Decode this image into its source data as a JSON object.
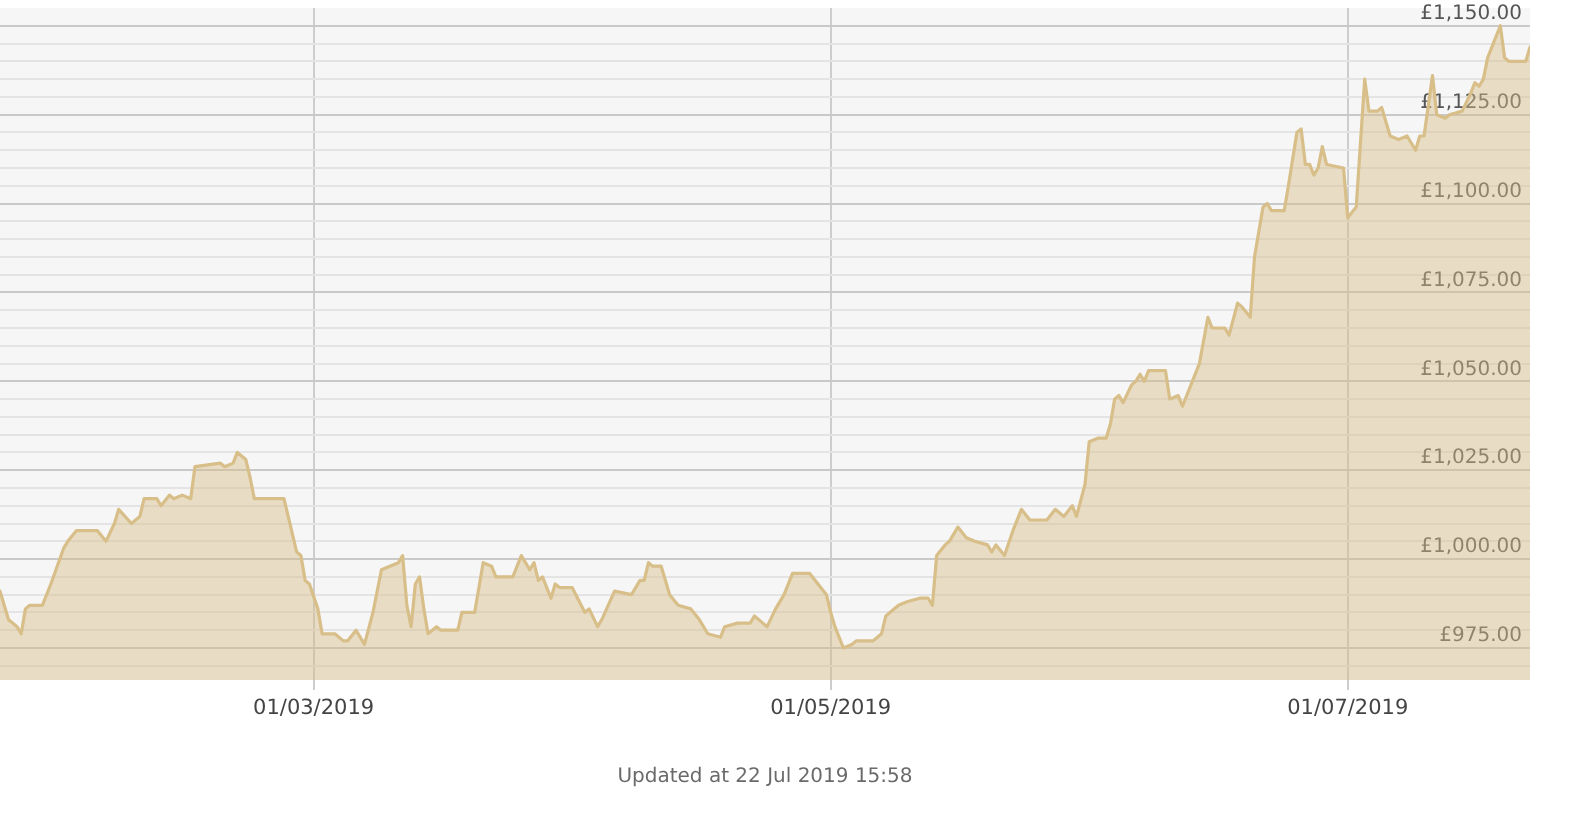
{
  "chart_data": {
    "type": "area",
    "color": "#d8be88",
    "marker": "none",
    "grid": true,
    "xlim": [
      "2019-01-23",
      "2019-07-22T12:00"
    ],
    "xticks": [
      {
        "value": "2019-03-01",
        "label": "01/03/2019"
      },
      {
        "value": "2019-05-01",
        "label": "01/05/2019"
      },
      {
        "value": "2019-07-01",
        "label": "01/07/2019"
      }
    ],
    "ylim": [
      966,
      1155
    ],
    "yticks": [
      {
        "value": 970,
        "label": null
      },
      {
        "value": 975,
        "label": "£975.00"
      },
      {
        "value": 980,
        "label": null
      },
      {
        "value": 985,
        "label": null
      },
      {
        "value": 990,
        "label": null
      },
      {
        "value": 995,
        "label": null
      },
      {
        "value": 1000,
        "label": "£1,000.00"
      },
      {
        "value": 1005,
        "label": null
      },
      {
        "value": 1010,
        "label": null
      },
      {
        "value": 1015,
        "label": null
      },
      {
        "value": 1020,
        "label": null
      },
      {
        "value": 1025,
        "label": "£1,025.00"
      },
      {
        "value": 1030,
        "label": null
      },
      {
        "value": 1035,
        "label": null
      },
      {
        "value": 1040,
        "label": null
      },
      {
        "value": 1045,
        "label": null
      },
      {
        "value": 1050,
        "label": "£1,050.00"
      },
      {
        "value": 1055,
        "label": null
      },
      {
        "value": 1060,
        "label": null
      },
      {
        "value": 1065,
        "label": null
      },
      {
        "value": 1070,
        "label": null
      },
      {
        "value": 1075,
        "label": "£1,075.00"
      },
      {
        "value": 1080,
        "label": null
      },
      {
        "value": 1085,
        "label": null
      },
      {
        "value": 1090,
        "label": null
      },
      {
        "value": 1095,
        "label": null
      },
      {
        "value": 1100,
        "label": "£1,100.00"
      },
      {
        "value": 1105,
        "label": null
      },
      {
        "value": 1110,
        "label": null
      },
      {
        "value": 1115,
        "label": null
      },
      {
        "value": 1120,
        "label": null
      },
      {
        "value": 1125,
        "label": "£1,125.00"
      },
      {
        "value": 1130,
        "label": null
      },
      {
        "value": 1135,
        "label": null
      },
      {
        "value": 1140,
        "label": null
      },
      {
        "value": 1145,
        "label": null
      },
      {
        "value": 1150,
        "label": "£1,150.00"
      }
    ],
    "x": [
      "2019-01-23",
      "2019-01-24",
      "2019-01-25",
      "2019-01-25T12:00",
      "2019-01-26",
      "2019-01-26T12:00",
      "2019-01-28",
      "2019-01-29",
      "2019-01-30T12:00",
      "2019-01-31",
      "2019-02-01",
      "2019-02-03T12:00",
      "2019-02-04T12:00",
      "2019-02-05T12:00",
      "2019-02-06",
      "2019-02-07T12:00",
      "2019-02-08T12:00",
      "2019-02-09",
      "2019-02-10T12:00",
      "2019-02-11",
      "2019-02-12",
      "2019-02-12T12:00",
      "2019-02-13T12:00",
      "2019-02-14T12:00",
      "2019-02-15",
      "2019-02-18",
      "2019-02-18T12:00",
      "2019-02-19T12:00",
      "2019-02-20",
      "2019-02-21",
      "2019-02-21T12:00",
      "2019-02-22",
      "2019-02-23",
      "2019-02-25T12:00",
      "2019-02-26",
      "2019-02-27",
      "2019-02-27T12:00",
      "2019-02-28",
      "2019-02-28T12:00",
      "2019-03-01T12:00",
      "2019-03-02",
      "2019-03-03T12:00",
      "2019-03-04T12:00",
      "2019-03-05",
      "2019-03-06",
      "2019-03-07",
      "2019-03-08",
      "2019-03-09",
      "2019-03-10",
      "2019-03-11",
      "2019-03-11T12:00",
      "2019-03-12",
      "2019-03-12T12:00",
      "2019-03-13",
      "2019-03-13T12:00",
      "2019-03-14",
      "2019-03-14T12:00",
      "2019-03-15T12:00",
      "2019-03-16",
      "2019-03-18",
      "2019-03-18T12:00",
      "2019-03-20",
      "2019-03-21",
      "2019-03-22",
      "2019-03-22T12:00",
      "2019-03-24T12:00",
      "2019-03-25T12:00",
      "2019-03-26T12:00",
      "2019-03-27",
      "2019-03-27T12:00",
      "2019-03-28",
      "2019-03-29",
      "2019-03-29T12:00",
      "2019-03-30",
      "2019-03-31T12:00",
      "2019-04-02",
      "2019-04-02T12:00",
      "2019-04-03T12:00",
      "2019-04-04",
      "2019-04-05T12:00",
      "2019-04-07T12:00",
      "2019-04-08T12:00",
      "2019-04-09",
      "2019-04-09T12:00",
      "2019-04-10",
      "2019-04-11",
      "2019-04-12",
      "2019-04-13",
      "2019-04-14T12:00",
      "2019-04-15T12:00",
      "2019-04-16T12:00",
      "2019-04-18",
      "2019-04-18T12:00",
      "2019-04-20",
      "2019-04-21T12:00",
      "2019-04-22",
      "2019-04-23",
      "2019-04-23T12:00",
      "2019-04-24T12:00",
      "2019-04-25T12:00",
      "2019-04-26T12:00",
      "2019-04-28T12:00",
      "2019-04-29T12:00",
      "2019-04-30T12:00",
      "2019-05-01",
      "2019-05-01T12:00",
      "2019-05-02T12:00",
      "2019-05-03T12:00",
      "2019-05-04",
      "2019-05-06",
      "2019-05-07",
      "2019-05-07T12:00",
      "2019-05-09",
      "2019-05-10",
      "2019-05-11T12:00",
      "2019-05-12T12:00",
      "2019-05-13",
      "2019-05-13T12:00",
      "2019-05-14T12:00",
      "2019-05-15",
      "2019-05-16",
      "2019-05-17",
      "2019-05-18",
      "2019-05-19T12:00",
      "2019-05-20",
      "2019-05-20T12:00",
      "2019-05-21T12:00",
      "2019-05-22T12:00",
      "2019-05-23T12:00",
      "2019-05-24T12:00",
      "2019-05-26T12:00",
      "2019-05-27T12:00",
      "2019-05-28T12:00",
      "2019-05-29T12:00",
      "2019-05-30",
      "2019-05-31",
      "2019-05-31T12:00",
      "2019-06-01T12:00",
      "2019-06-02T12:00",
      "2019-06-03",
      "2019-06-03T12:00",
      "2019-06-04",
      "2019-06-04T12:00",
      "2019-06-05T12:00",
      "2019-06-06",
      "2019-06-06T12:00",
      "2019-06-07",
      "2019-06-07T12:00",
      "2019-06-09T12:00",
      "2019-06-10",
      "2019-06-11",
      "2019-06-11T12:00",
      "2019-06-12T12:00",
      "2019-06-13T12:00",
      "2019-06-14T12:00",
      "2019-06-15",
      "2019-06-16T12:00",
      "2019-06-17",
      "2019-06-18",
      "2019-06-18T12:00",
      "2019-06-19T12:00",
      "2019-06-20",
      "2019-06-21",
      "2019-06-21T12:00",
      "2019-06-22",
      "2019-06-23T12:00",
      "2019-06-24",
      "2019-06-25",
      "2019-06-25T12:00",
      "2019-06-26",
      "2019-06-26T12:00",
      "2019-06-27",
      "2019-06-27T12:00",
      "2019-06-28",
      "2019-06-28T12:00",
      "2019-06-30T12:00",
      "2019-07-01",
      "2019-07-02",
      "2019-07-03",
      "2019-07-03T12:00",
      "2019-07-04T12:00",
      "2019-07-05",
      "2019-07-06",
      "2019-07-07",
      "2019-07-08",
      "2019-07-09",
      "2019-07-09T12:00",
      "2019-07-10",
      "2019-07-11",
      "2019-07-11T12:00",
      "2019-07-12T12:00",
      "2019-07-13",
      "2019-07-14T12:00",
      "2019-07-15T12:00",
      "2019-07-16",
      "2019-07-16T12:00",
      "2019-07-17",
      "2019-07-17T12:00",
      "2019-07-18",
      "2019-07-19",
      "2019-07-19T12:00",
      "2019-07-20",
      "2019-07-22",
      "2019-07-22T12:00"
    ],
    "values": [
      991,
      983,
      981,
      979,
      986,
      987,
      987,
      993,
      1003,
      1005,
      1008,
      1008,
      1005,
      1010,
      1014,
      1010,
      1012,
      1017,
      1017,
      1015,
      1018,
      1017,
      1018,
      1017,
      1026,
      1027,
      1026,
      1027,
      1030,
      1028,
      1023,
      1017,
      1017,
      1017,
      1012,
      1002,
      1001,
      994,
      993,
      986,
      979,
      979,
      977,
      977,
      980,
      976,
      985,
      997,
      998,
      999,
      1001,
      987,
      981,
      993,
      995,
      986,
      979,
      981,
      980,
      980,
      985,
      985,
      999,
      998,
      995,
      995,
      1001,
      997,
      999,
      994,
      995,
      989,
      993,
      992,
      992,
      985,
      986,
      981,
      983,
      991,
      990,
      994,
      994,
      999,
      998,
      998,
      990,
      987,
      986,
      983,
      979,
      978,
      981,
      982,
      982,
      984,
      982,
      981,
      986,
      990,
      996,
      996,
      993,
      990,
      985,
      981,
      975,
      976,
      977,
      977,
      979,
      984,
      987,
      988,
      989,
      989,
      987,
      1001,
      1004,
      1005,
      1009,
      1006,
      1005,
      1004,
      1002,
      1004,
      1001,
      1008,
      1014,
      1011,
      1011,
      1014,
      1012,
      1015,
      1012,
      1021,
      1033,
      1034,
      1034,
      1038,
      1045,
      1046,
      1044,
      1049,
      1050,
      1052,
      1050,
      1053,
      1053,
      1045,
      1046,
      1043,
      1049,
      1055,
      1068,
      1065,
      1065,
      1063,
      1072,
      1071,
      1068,
      1085,
      1099,
      1100,
      1098,
      1098,
      1105,
      1120,
      1121,
      1111,
      1111,
      1108,
      1110,
      1116,
      1111,
      1110,
      1096,
      1099,
      1135,
      1126,
      1126,
      1127,
      1119,
      1118,
      1119,
      1115,
      1119,
      1119,
      1136,
      1125,
      1124,
      1125,
      1126,
      1131,
      1134,
      1133,
      1135,
      1141,
      1144,
      1150,
      1141,
      1140,
      1140,
      1144
    ],
    "annotations": [
      "Updated at 22 Jul 2019 15:58"
    ]
  }
}
